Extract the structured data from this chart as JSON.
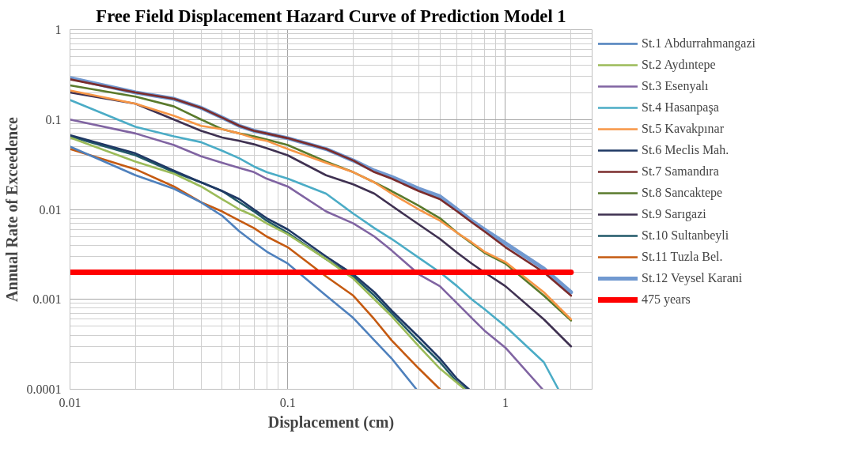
{
  "chart_data": {
    "type": "line",
    "title": "Free Field Displacement Hazard Curve of Prediction Model 1",
    "xlabel": "Displacement (cm)",
    "ylabel": "Annual Rate of Exceedence",
    "log": "xy",
    "grid": true,
    "legend": "right",
    "line_style": "solid",
    "marker": "none",
    "xlim": [
      0.01,
      2.5
    ],
    "ylim": [
      0.0001,
      1
    ],
    "xticks": [
      0.01,
      0.1,
      1
    ],
    "yticks": [
      0.0001,
      0.001,
      0.01,
      0.1,
      1
    ],
    "series": [
      {
        "name": "St.1 Abdurrahmangazi",
        "color": "#4f81bd",
        "x": [
          0.01,
          0.02,
          0.03,
          0.04,
          0.05,
          0.06,
          0.07,
          0.08,
          0.1,
          0.15,
          0.2,
          0.25,
          0.3,
          0.39
        ],
        "values": [
          0.05,
          0.024,
          0.017,
          0.012,
          0.0085,
          0.0057,
          0.0043,
          0.0034,
          0.0025,
          0.0011,
          0.00062,
          0.00035,
          0.00022,
          0.0001
        ]
      },
      {
        "name": "St.2 Aydıntepe",
        "color": "#9bbb59",
        "x": [
          0.01,
          0.02,
          0.03,
          0.04,
          0.05,
          0.06,
          0.07,
          0.08,
          0.1,
          0.15,
          0.2,
          0.25,
          0.3,
          0.4,
          0.5,
          0.65
        ],
        "values": [
          0.063,
          0.034,
          0.025,
          0.018,
          0.013,
          0.01,
          0.0085,
          0.007,
          0.0053,
          0.0028,
          0.0017,
          0.001,
          0.00065,
          0.0003,
          0.00017,
          0.0001
        ]
      },
      {
        "name": "St.3 Esenyalı",
        "color": "#8064a2",
        "x": [
          0.01,
          0.02,
          0.03,
          0.04,
          0.05,
          0.06,
          0.07,
          0.08,
          0.1,
          0.15,
          0.2,
          0.25,
          0.3,
          0.4,
          0.5,
          0.6,
          0.7,
          0.8,
          1,
          1.48
        ],
        "values": [
          0.1,
          0.07,
          0.052,
          0.039,
          0.033,
          0.029,
          0.026,
          0.022,
          0.018,
          0.0095,
          0.007,
          0.005,
          0.0035,
          0.0019,
          0.0014,
          0.0009,
          0.00062,
          0.00045,
          0.00029,
          0.0001
        ]
      },
      {
        "name": "St.4 Hasanpaşa",
        "color": "#4bacc6",
        "x": [
          0.01,
          0.02,
          0.03,
          0.04,
          0.05,
          0.06,
          0.07,
          0.08,
          0.1,
          0.15,
          0.2,
          0.25,
          0.3,
          0.4,
          0.5,
          0.6,
          0.7,
          0.8,
          1,
          1.5,
          1.75
        ],
        "values": [
          0.165,
          0.083,
          0.065,
          0.056,
          0.045,
          0.037,
          0.03,
          0.026,
          0.022,
          0.015,
          0.009,
          0.0062,
          0.0047,
          0.0029,
          0.002,
          0.0014,
          0.001,
          0.00078,
          0.0005,
          0.0002,
          0.0001
        ]
      },
      {
        "name": "St.5 Kavakpınar",
        "color": "#f79646",
        "x": [
          0.01,
          0.02,
          0.03,
          0.04,
          0.05,
          0.06,
          0.07,
          0.08,
          0.1,
          0.15,
          0.2,
          0.25,
          0.3,
          0.4,
          0.5,
          0.6,
          0.7,
          0.8,
          1,
          1.5,
          2
        ],
        "values": [
          0.21,
          0.15,
          0.11,
          0.085,
          0.078,
          0.07,
          0.062,
          0.058,
          0.047,
          0.033,
          0.026,
          0.02,
          0.015,
          0.01,
          0.0075,
          0.0055,
          0.0043,
          0.0034,
          0.0026,
          0.0012,
          0.0006
        ]
      },
      {
        "name": "St.6 Meclis Mah.",
        "color": "#1f3864",
        "x": [
          0.01,
          0.02,
          0.03,
          0.04,
          0.05,
          0.06,
          0.07,
          0.08,
          0.1,
          0.15,
          0.2,
          0.25,
          0.3,
          0.4,
          0.5,
          0.6,
          0.68
        ],
        "values": [
          0.067,
          0.042,
          0.027,
          0.02,
          0.016,
          0.013,
          0.01,
          0.008,
          0.006,
          0.003,
          0.0019,
          0.0012,
          0.00075,
          0.00038,
          0.00022,
          0.00013,
          0.0001
        ]
      },
      {
        "name": "St.7 Samandıra",
        "color": "#7b2c2c",
        "x": [
          0.01,
          0.02,
          0.03,
          0.04,
          0.05,
          0.06,
          0.07,
          0.08,
          0.1,
          0.15,
          0.2,
          0.25,
          0.3,
          0.4,
          0.5,
          0.6,
          0.7,
          0.8,
          1,
          1.5,
          2
        ],
        "values": [
          0.28,
          0.2,
          0.17,
          0.135,
          0.105,
          0.085,
          0.075,
          0.07,
          0.062,
          0.047,
          0.035,
          0.026,
          0.022,
          0.016,
          0.013,
          0.0095,
          0.0072,
          0.0057,
          0.0038,
          0.002,
          0.0011
        ]
      },
      {
        "name": "St.8 Sancaktepe",
        "color": "#5a7a2c",
        "x": [
          0.01,
          0.02,
          0.03,
          0.04,
          0.05,
          0.06,
          0.07,
          0.08,
          0.1,
          0.15,
          0.2,
          0.25,
          0.3,
          0.4,
          0.5,
          0.6,
          0.7,
          0.8,
          1,
          1.5,
          2
        ],
        "values": [
          0.24,
          0.18,
          0.14,
          0.1,
          0.078,
          0.07,
          0.065,
          0.06,
          0.052,
          0.034,
          0.026,
          0.02,
          0.016,
          0.011,
          0.008,
          0.0055,
          0.0042,
          0.0033,
          0.0025,
          0.0011,
          0.00058
        ]
      },
      {
        "name": "St.9 Sarıgazi",
        "color": "#3f3151",
        "x": [
          0.01,
          0.02,
          0.03,
          0.04,
          0.05,
          0.06,
          0.07,
          0.08,
          0.1,
          0.15,
          0.2,
          0.25,
          0.3,
          0.4,
          0.5,
          0.6,
          0.7,
          0.8,
          1,
          1.5,
          2
        ],
        "values": [
          0.2,
          0.15,
          0.1,
          0.075,
          0.063,
          0.058,
          0.053,
          0.048,
          0.04,
          0.024,
          0.019,
          0.015,
          0.011,
          0.0068,
          0.0047,
          0.0033,
          0.0025,
          0.002,
          0.0014,
          0.0006,
          0.0003
        ]
      },
      {
        "name": "St.10 Sultanbeyli",
        "color": "#215968",
        "x": [
          0.01,
          0.02,
          0.03,
          0.04,
          0.05,
          0.06,
          0.07,
          0.08,
          0.1,
          0.15,
          0.2,
          0.25,
          0.3,
          0.4,
          0.5,
          0.6,
          0.66
        ],
        "values": [
          0.065,
          0.04,
          0.026,
          0.02,
          0.016,
          0.012,
          0.0095,
          0.0075,
          0.0055,
          0.0028,
          0.0018,
          0.0011,
          0.0007,
          0.00034,
          0.0002,
          0.00012,
          0.0001
        ]
      },
      {
        "name": "St.11 Tuzla Bel.",
        "color": "#c55a11",
        "x": [
          0.01,
          0.02,
          0.03,
          0.04,
          0.05,
          0.06,
          0.07,
          0.08,
          0.1,
          0.15,
          0.2,
          0.25,
          0.3,
          0.4,
          0.5
        ],
        "values": [
          0.047,
          0.028,
          0.018,
          0.012,
          0.0095,
          0.0075,
          0.0062,
          0.005,
          0.0038,
          0.0018,
          0.0011,
          0.0006,
          0.00035,
          0.00017,
          0.0001
        ]
      },
      {
        "name": "St.12 Veysel Karani",
        "color": "#7199d0",
        "x": [
          0.01,
          0.02,
          0.03,
          0.04,
          0.05,
          0.06,
          0.07,
          0.08,
          0.1,
          0.15,
          0.2,
          0.25,
          0.3,
          0.4,
          0.5,
          0.6,
          0.7,
          0.8,
          1,
          1.5,
          2
        ],
        "values": [
          0.29,
          0.2,
          0.17,
          0.135,
          0.105,
          0.085,
          0.075,
          0.07,
          0.062,
          0.047,
          0.035,
          0.027,
          0.023,
          0.017,
          0.014,
          0.01,
          0.0075,
          0.006,
          0.0042,
          0.0022,
          0.0012
        ]
      },
      {
        "name": "475 years",
        "color": "#ff0000",
        "x": [
          0.01,
          2
        ],
        "values": [
          0.002,
          0.002
        ]
      }
    ]
  }
}
